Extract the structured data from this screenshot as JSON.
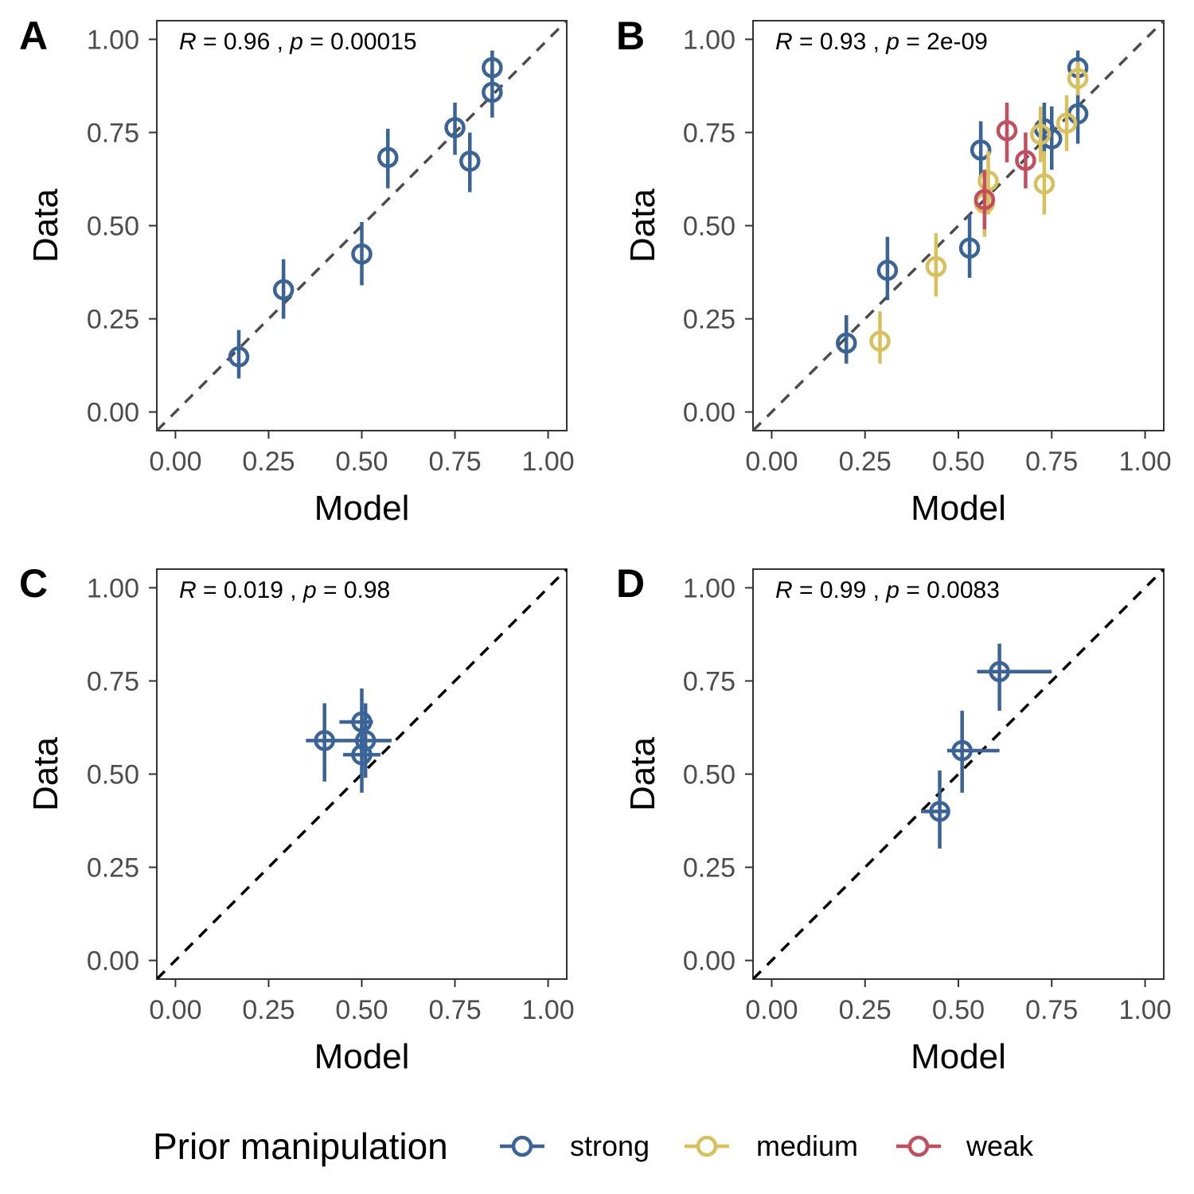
{
  "colors": {
    "strong": "#3A6398",
    "medium": "#D8C15C",
    "weak": "#C44E5E"
  },
  "legend": {
    "title": "Prior manipulation",
    "items": [
      {
        "key": "strong",
        "label": "strong"
      },
      {
        "key": "medium",
        "label": "medium"
      },
      {
        "key": "weak",
        "label": "weak"
      }
    ]
  },
  "chart_data": [
    {
      "panel": "A",
      "type": "scatter",
      "title": "",
      "xlabel": "Model",
      "ylabel": "Data",
      "xlim": [
        -0.05,
        1.05
      ],
      "ylim": [
        -0.05,
        1.05
      ],
      "ticks": [
        0,
        0.25,
        0.5,
        0.75,
        1
      ],
      "tick_labels": [
        "0.00",
        "0.25",
        "0.50",
        "0.75",
        "1.00"
      ],
      "stat": {
        "r": "0.96",
        "p": "0.00015"
      },
      "diagonal": "dashed-gray",
      "points": [
        {
          "x": 0.17,
          "y": 0.148,
          "ylo": 0.09,
          "yhi": 0.22,
          "group": "strong"
        },
        {
          "x": 0.29,
          "y": 0.328,
          "ylo": 0.25,
          "yhi": 0.41,
          "group": "strong"
        },
        {
          "x": 0.5,
          "y": 0.424,
          "ylo": 0.34,
          "yhi": 0.51,
          "group": "strong"
        },
        {
          "x": 0.57,
          "y": 0.683,
          "ylo": 0.6,
          "yhi": 0.76,
          "group": "strong"
        },
        {
          "x": 0.75,
          "y": 0.763,
          "ylo": 0.69,
          "yhi": 0.83,
          "group": "strong"
        },
        {
          "x": 0.79,
          "y": 0.673,
          "ylo": 0.59,
          "yhi": 0.75,
          "group": "strong"
        },
        {
          "x": 0.85,
          "y": 0.858,
          "ylo": 0.79,
          "yhi": 0.92,
          "group": "strong"
        },
        {
          "x": 0.85,
          "y": 0.924,
          "ylo": 0.88,
          "yhi": 0.97,
          "group": "strong"
        }
      ]
    },
    {
      "panel": "B",
      "type": "scatter",
      "title": "",
      "xlabel": "Model",
      "ylabel": "Data",
      "xlim": [
        -0.05,
        1.05
      ],
      "ylim": [
        -0.05,
        1.05
      ],
      "ticks": [
        0,
        0.25,
        0.5,
        0.75,
        1
      ],
      "tick_labels": [
        "0.00",
        "0.25",
        "0.50",
        "0.75",
        "1.00"
      ],
      "stat": {
        "r": "0.93",
        "p": "2e-09"
      },
      "diagonal": "dashed-gray",
      "points": [
        {
          "x": 0.2,
          "y": 0.185,
          "ylo": 0.13,
          "yhi": 0.26,
          "group": "strong"
        },
        {
          "x": 0.31,
          "y": 0.38,
          "ylo": 0.3,
          "yhi": 0.47,
          "group": "strong"
        },
        {
          "x": 0.53,
          "y": 0.44,
          "ylo": 0.36,
          "yhi": 0.53,
          "group": "strong"
        },
        {
          "x": 0.56,
          "y": 0.703,
          "ylo": 0.63,
          "yhi": 0.78,
          "group": "strong"
        },
        {
          "x": 0.73,
          "y": 0.76,
          "ylo": 0.69,
          "yhi": 0.83,
          "group": "strong"
        },
        {
          "x": 0.75,
          "y": 0.733,
          "ylo": 0.65,
          "yhi": 0.82,
          "group": "strong"
        },
        {
          "x": 0.82,
          "y": 0.8,
          "ylo": 0.72,
          "yhi": 0.87,
          "group": "strong"
        },
        {
          "x": 0.82,
          "y": 0.924,
          "ylo": 0.88,
          "yhi": 0.97,
          "group": "strong"
        },
        {
          "x": 0.29,
          "y": 0.19,
          "ylo": 0.13,
          "yhi": 0.27,
          "group": "medium"
        },
        {
          "x": 0.44,
          "y": 0.39,
          "ylo": 0.31,
          "yhi": 0.48,
          "group": "medium"
        },
        {
          "x": 0.57,
          "y": 0.56,
          "ylo": 0.47,
          "yhi": 0.65,
          "group": "medium"
        },
        {
          "x": 0.58,
          "y": 0.62,
          "ylo": 0.53,
          "yhi": 0.7,
          "group": "medium"
        },
        {
          "x": 0.72,
          "y": 0.745,
          "ylo": 0.67,
          "yhi": 0.82,
          "group": "medium"
        },
        {
          "x": 0.73,
          "y": 0.612,
          "ylo": 0.53,
          "yhi": 0.7,
          "group": "medium"
        },
        {
          "x": 0.79,
          "y": 0.775,
          "ylo": 0.7,
          "yhi": 0.85,
          "group": "medium"
        },
        {
          "x": 0.82,
          "y": 0.895,
          "ylo": 0.85,
          "yhi": 0.94,
          "group": "medium"
        },
        {
          "x": 0.57,
          "y": 0.57,
          "ylo": 0.49,
          "yhi": 0.65,
          "group": "weak"
        },
        {
          "x": 0.63,
          "y": 0.755,
          "ylo": 0.67,
          "yhi": 0.83,
          "group": "weak"
        },
        {
          "x": 0.68,
          "y": 0.675,
          "ylo": 0.6,
          "yhi": 0.75,
          "group": "weak"
        }
      ]
    },
    {
      "panel": "C",
      "type": "scatter",
      "title": "",
      "xlabel": "Model",
      "ylabel": "Data",
      "xlim": [
        -0.05,
        1.05
      ],
      "ylim": [
        -0.05,
        1.05
      ],
      "ticks": [
        0,
        0.25,
        0.5,
        0.75,
        1
      ],
      "tick_labels": [
        "0.00",
        "0.25",
        "0.50",
        "0.75",
        "1.00"
      ],
      "stat": {
        "r": "0.019",
        "p": "0.98"
      },
      "diagonal": "dashed-black",
      "points": [
        {
          "x": 0.4,
          "y": 0.59,
          "ylo": 0.48,
          "yhi": 0.69,
          "xlo": 0.35,
          "xhi": 0.45,
          "group": "strong"
        },
        {
          "x": 0.5,
          "y": 0.64,
          "ylo": 0.55,
          "yhi": 0.73,
          "xlo": 0.44,
          "xhi": 0.53,
          "group": "strong"
        },
        {
          "x": 0.5,
          "y": 0.552,
          "ylo": 0.45,
          "yhi": 0.63,
          "xlo": 0.45,
          "xhi": 0.55,
          "group": "strong"
        },
        {
          "x": 0.51,
          "y": 0.59,
          "ylo": 0.49,
          "yhi": 0.69,
          "xlo": 0.45,
          "xhi": 0.58,
          "group": "strong"
        }
      ]
    },
    {
      "panel": "D",
      "type": "scatter",
      "title": "",
      "xlabel": "Model",
      "ylabel": "Data",
      "xlim": [
        -0.05,
        1.05
      ],
      "ylim": [
        -0.05,
        1.05
      ],
      "ticks": [
        0,
        0.25,
        0.5,
        0.75,
        1
      ],
      "tick_labels": [
        "0.00",
        "0.25",
        "0.50",
        "0.75",
        "1.00"
      ],
      "stat": {
        "r": "0.99",
        "p": "0.0083"
      },
      "diagonal": "dashed-black",
      "points": [
        {
          "x": 0.45,
          "y": 0.4,
          "ylo": 0.3,
          "yhi": 0.51,
          "xlo": 0.4,
          "xhi": 0.47,
          "group": "strong"
        },
        {
          "x": 0.51,
          "y": 0.563,
          "ylo": 0.45,
          "yhi": 0.67,
          "xlo": 0.47,
          "xhi": 0.61,
          "group": "strong"
        },
        {
          "x": 0.61,
          "y": 0.775,
          "ylo": 0.67,
          "yhi": 0.85,
          "xlo": 0.55,
          "xhi": 0.75,
          "group": "strong"
        }
      ]
    }
  ]
}
